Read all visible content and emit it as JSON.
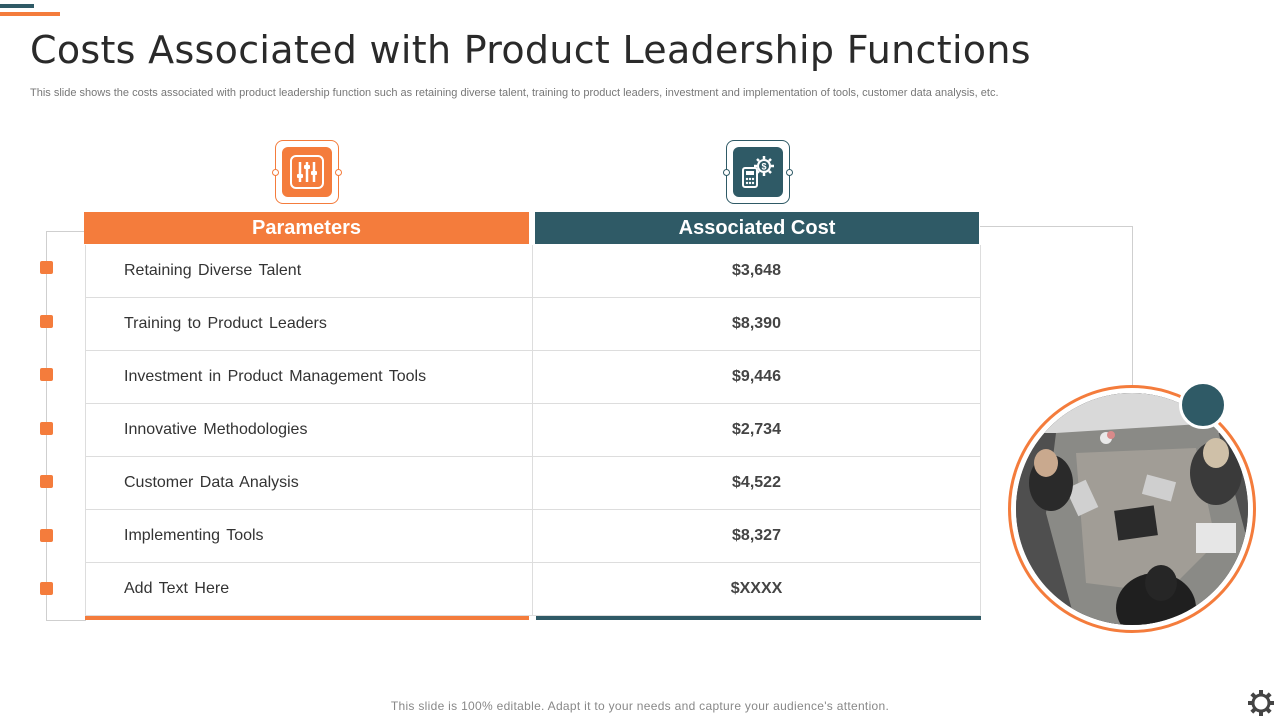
{
  "title": "Costs Associated with Product Leadership Functions",
  "subtitle": "This slide shows the costs associated with product leadership function such as retaining diverse talent, training to product leaders, investment and implementation of tools, customer data analysis, etc.",
  "table": {
    "headers": {
      "parameters": "Parameters",
      "cost": "Associated Cost"
    },
    "rows": [
      {
        "parameter": "Retaining Diverse Talent",
        "cost": "$3,648"
      },
      {
        "parameter": "Training to Product Leaders",
        "cost": "$8,390"
      },
      {
        "parameter": "Investment in Product Management Tools",
        "cost": "$9,446"
      },
      {
        "parameter": "Innovative Methodologies",
        "cost": "$2,734"
      },
      {
        "parameter": "Customer Data Analysis",
        "cost": "$4,522"
      },
      {
        "parameter": "Implementing Tools",
        "cost": "$8,327"
      },
      {
        "parameter": "Add Text Here",
        "cost": "$XXXX"
      }
    ]
  },
  "icons": {
    "parameters": "sliders-icon",
    "cost": "calculator-gear-dollar-icon",
    "settings": "gear-icon"
  },
  "colors": {
    "accent": "#f47c3c",
    "teal": "#2f5a66"
  },
  "footer": "This slide is 100% editable. Adapt it to your needs and capture your audience's attention."
}
